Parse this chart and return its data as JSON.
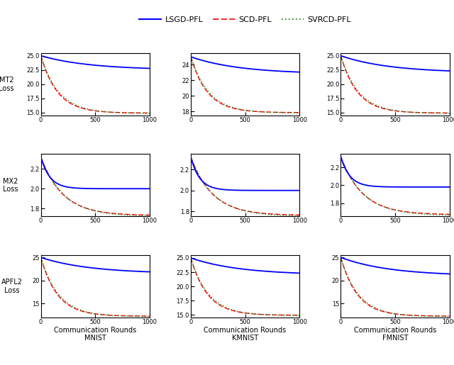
{
  "legend_entries": [
    "LSGD-PFL",
    "SCD-PFL",
    "SVRCD-PFL"
  ],
  "datasets": [
    "MNIST",
    "KMNIST",
    "FMNIST"
  ],
  "row_labels": [
    "MT2\nLoss",
    "MX2\nLoss",
    "APFL2\nLoss"
  ],
  "x_ticks": [
    0,
    500,
    1000
  ],
  "subplot_configs": [
    {
      "row": 0,
      "col": 0,
      "ylim": [
        14.5,
        25.5
      ],
      "yticks": [
        15.0,
        17.5,
        20.0,
        22.5,
        25.0
      ],
      "curves": [
        {
          "start": 25.0,
          "end": 22.5,
          "decay": 0.0022
        },
        {
          "start": 25.0,
          "end": 14.9,
          "decay": 0.0065
        },
        {
          "start": 25.0,
          "end": 14.85,
          "decay": 0.006
        }
      ]
    },
    {
      "row": 0,
      "col": 1,
      "ylim": [
        17.5,
        25.5
      ],
      "yticks": [
        18,
        20,
        22,
        24
      ],
      "curves": [
        {
          "start": 25.0,
          "end": 22.8,
          "decay": 0.0022
        },
        {
          "start": 25.0,
          "end": 17.85,
          "decay": 0.0065
        },
        {
          "start": 25.0,
          "end": 17.8,
          "decay": 0.006
        }
      ]
    },
    {
      "row": 0,
      "col": 2,
      "ylim": [
        14.5,
        25.5
      ],
      "yticks": [
        15.0,
        17.5,
        20.0,
        22.5,
        25.0
      ],
      "curves": [
        {
          "start": 25.0,
          "end": 22.0,
          "decay": 0.0022
        },
        {
          "start": 25.0,
          "end": 14.9,
          "decay": 0.0065
        },
        {
          "start": 25.0,
          "end": 14.85,
          "decay": 0.006
        }
      ]
    },
    {
      "row": 1,
      "col": 0,
      "ylim": [
        1.72,
        2.35
      ],
      "yticks": [
        1.8,
        2.0,
        2.2
      ],
      "curves": [
        {
          "start": 2.32,
          "end": 2.0,
          "decay": 0.012
        },
        {
          "start": 2.32,
          "end": 1.73,
          "decay": 0.005
        },
        {
          "start": 2.32,
          "end": 1.72,
          "decay": 0.0048
        }
      ]
    },
    {
      "row": 1,
      "col": 1,
      "ylim": [
        1.75,
        2.35
      ],
      "yticks": [
        1.8,
        2.0,
        2.2
      ],
      "curves": [
        {
          "start": 2.32,
          "end": 2.0,
          "decay": 0.012
        },
        {
          "start": 2.32,
          "end": 1.76,
          "decay": 0.005
        },
        {
          "start": 2.32,
          "end": 1.75,
          "decay": 0.0048
        }
      ]
    },
    {
      "row": 1,
      "col": 2,
      "ylim": [
        1.65,
        2.35
      ],
      "yticks": [
        1.8,
        2.0,
        2.2
      ],
      "curves": [
        {
          "start": 2.32,
          "end": 1.98,
          "decay": 0.012
        },
        {
          "start": 2.32,
          "end": 1.67,
          "decay": 0.005
        },
        {
          "start": 2.32,
          "end": 1.66,
          "decay": 0.0048
        }
      ]
    },
    {
      "row": 2,
      "col": 0,
      "ylim": [
        12.0,
        25.5
      ],
      "yticks": [
        15,
        20,
        25
      ],
      "curves": [
        {
          "start": 25.0,
          "end": 21.5,
          "decay": 0.0022
        },
        {
          "start": 25.0,
          "end": 12.3,
          "decay": 0.0065
        },
        {
          "start": 25.0,
          "end": 12.2,
          "decay": 0.006
        }
      ]
    },
    {
      "row": 2,
      "col": 1,
      "ylim": [
        14.5,
        25.5
      ],
      "yticks": [
        15.0,
        17.5,
        20.0,
        22.5,
        25.0
      ],
      "curves": [
        {
          "start": 25.0,
          "end": 22.0,
          "decay": 0.0022
        },
        {
          "start": 25.0,
          "end": 14.9,
          "decay": 0.0065
        },
        {
          "start": 25.0,
          "end": 14.85,
          "decay": 0.006
        }
      ]
    },
    {
      "row": 2,
      "col": 2,
      "ylim": [
        12.0,
        25.5
      ],
      "yticks": [
        15,
        20,
        25
      ],
      "curves": [
        {
          "start": 25.0,
          "end": 21.0,
          "decay": 0.0022
        },
        {
          "start": 25.0,
          "end": 12.3,
          "decay": 0.0065
        },
        {
          "start": 25.0,
          "end": 12.2,
          "decay": 0.006
        }
      ]
    }
  ]
}
